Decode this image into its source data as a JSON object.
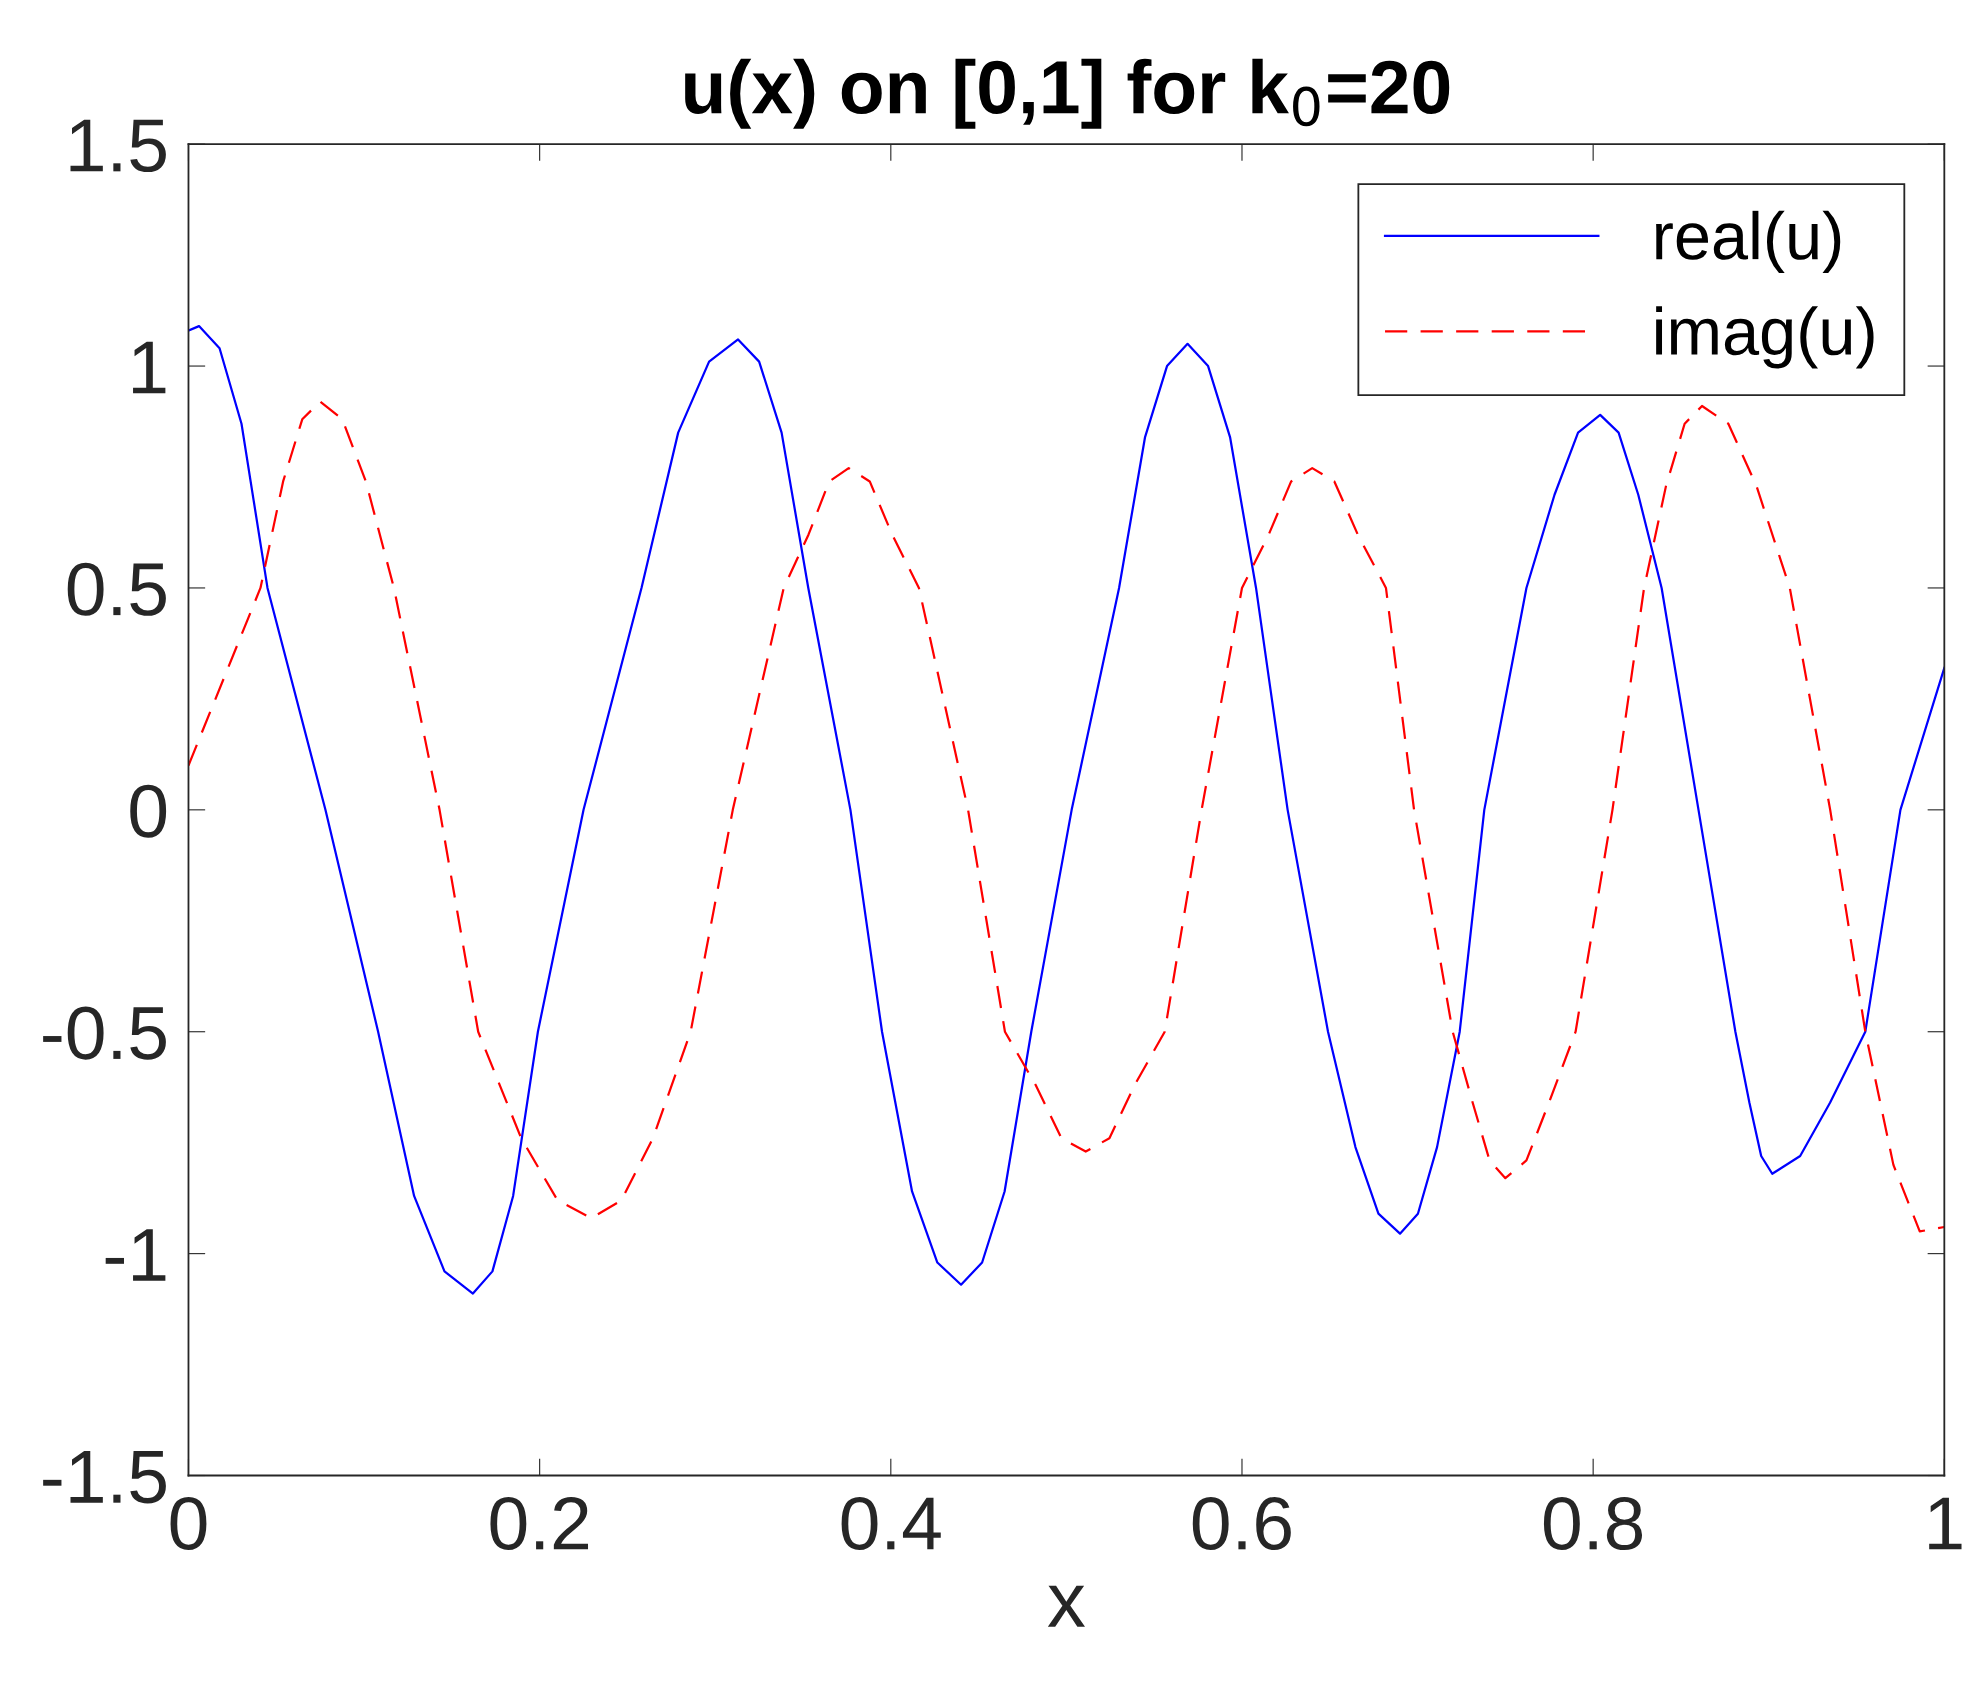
{
  "chart_data": {
    "type": "line",
    "title": "u(x) on [0,1] for k$_{0}$=20",
    "xlabel": "x",
    "xlim": [
      0,
      1
    ],
    "ylim": [
      -1.5,
      1.5
    ],
    "xticks": [
      0,
      0.2,
      0.4,
      0.6,
      0.8,
      1
    ],
    "yticks": [
      -1.5,
      -1,
      -0.5,
      0,
      0.5,
      1,
      1.5
    ],
    "grid": false,
    "legend": "top right",
    "marker": "none",
    "series": [
      {
        "name": "real(u)",
        "color": "#0000ff",
        "line_style": "solid",
        "x": [
          0,
          0.006,
          0.0177,
          0.0302,
          0.045,
          0.078,
          0.108,
          0.1285,
          0.1458,
          0.162,
          0.1731,
          0.1849,
          0.199,
          0.225,
          0.258,
          0.2789,
          0.2965,
          0.313,
          0.325,
          0.3378,
          0.353,
          0.377,
          0.395,
          0.4121,
          0.4265,
          0.44,
          0.452,
          0.4648,
          0.48,
          0.503,
          0.53,
          0.5448,
          0.5573,
          0.569,
          0.5807,
          0.5932,
          0.608,
          0.626,
          0.649,
          0.6646,
          0.6777,
          0.69,
          0.7002,
          0.7111,
          0.724,
          0.738,
          0.762,
          0.778,
          0.7914,
          0.804,
          0.8145,
          0.8257,
          0.839,
          0.86,
          0.881,
          0.889,
          0.8957,
          0.902,
          0.9179,
          0.9349,
          0.955,
          0.975,
          1
        ],
        "values": [
          1.08,
          1.09,
          1.04,
          0.87,
          0.5,
          0,
          -0.5,
          -0.87,
          -1.04,
          -1.09,
          -1.04,
          -0.87,
          -0.5,
          0,
          0.5,
          0.85,
          1.01,
          1.06,
          1.01,
          0.85,
          0.5,
          0,
          -0.5,
          -0.86,
          -1.02,
          -1.07,
          -1.02,
          -0.86,
          -0.5,
          0,
          0.5,
          0.84,
          1.0,
          1.05,
          1.0,
          0.84,
          0.5,
          0,
          -0.5,
          -0.76,
          -0.91,
          -0.955,
          -0.91,
          -0.76,
          -0.5,
          0,
          0.5,
          0.71,
          0.85,
          0.89,
          0.85,
          0.71,
          0.5,
          0,
          -0.5,
          -0.66,
          -0.78,
          -0.82,
          -0.78,
          -0.66,
          -0.5,
          0,
          0.32
        ]
      },
      {
        "name": "imag(u)",
        "color": "#ff0000",
        "line_style": "dashed",
        "x": [
          0,
          0.041,
          0.0539,
          0.0648,
          0.075,
          0.0876,
          0.101,
          0.117,
          0.143,
          0.165,
          0.1895,
          0.2102,
          0.2295,
          0.2465,
          0.2645,
          0.286,
          0.31,
          0.339,
          0.3531,
          0.3649,
          0.376,
          0.388,
          0.4008,
          0.416,
          0.444,
          0.465,
          0.4825,
          0.4972,
          0.511,
          0.5245,
          0.5389,
          0.556,
          0.577,
          0.6,
          0.6152,
          0.628,
          0.64,
          0.6526,
          0.666,
          0.682,
          0.698,
          0.72,
          0.7314,
          0.741,
          0.75,
          0.762,
          0.7748,
          0.79,
          0.811,
          0.829,
          0.8415,
          0.8521,
          0.862,
          0.877,
          0.893,
          0.912,
          0.935,
          0.955,
          0.971,
          0.986,
          1
        ],
        "values": [
          0.1,
          0.5,
          0.74,
          0.88,
          0.92,
          0.88,
          0.74,
          0.5,
          0,
          -0.5,
          -0.74,
          -0.88,
          -0.92,
          -0.88,
          -0.74,
          -0.5,
          0,
          0.5,
          0.62,
          0.74,
          0.77,
          0.74,
          0.62,
          0.5,
          0,
          -0.5,
          -0.62,
          -0.74,
          -0.77,
          -0.74,
          -0.62,
          -0.5,
          0,
          0.5,
          0.62,
          0.74,
          0.77,
          0.74,
          0.62,
          0.5,
          0,
          -0.5,
          -0.66,
          -0.79,
          -0.83,
          -0.79,
          -0.66,
          -0.5,
          0,
          0.5,
          0.73,
          0.87,
          0.91,
          0.87,
          0.73,
          0.5,
          0,
          -0.5,
          -0.8,
          -0.95,
          -0.94
        ]
      }
    ]
  }
}
